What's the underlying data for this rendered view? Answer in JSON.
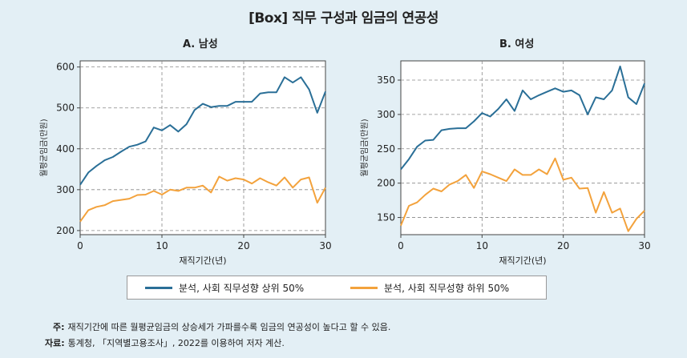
{
  "title": "[Box] 직무 구성과 임금의 연공성",
  "legend": {
    "upper": "분석, 사회 직무성향 상위 50%",
    "lower": "분석, 사회 직무성향 하위 50%"
  },
  "notes": {
    "note_label": "주:",
    "note_text": "재직기간에 따른 월평균임금의 상승세가 가파를수록 임금의 연공성이 높다고 할 수 있음.",
    "source_label": "자료:",
    "source_text": "통계청, 「지역별고용조사」, 2022를 이용하여 저자 계산."
  },
  "colors": {
    "upper": "#2a6f97",
    "lower": "#f3a23c",
    "grid": "#888888",
    "background": "#e3eff5",
    "plot_bg": "#ffffff"
  },
  "chart_data": [
    {
      "type": "line",
      "title": "A. 남성",
      "xlabel": "재직기간(년)",
      "ylabel": "월평균임금(만원)",
      "xlim": [
        0,
        30
      ],
      "ylim": [
        190,
        615
      ],
      "xticks": [
        0,
        10,
        20,
        30
      ],
      "yticks": [
        200,
        300,
        400,
        500,
        600
      ],
      "grid": true,
      "x": [
        0,
        1,
        2,
        3,
        4,
        5,
        6,
        7,
        8,
        9,
        10,
        11,
        12,
        13,
        14,
        15,
        16,
        17,
        18,
        19,
        20,
        21,
        22,
        23,
        24,
        25,
        26,
        27,
        28,
        29,
        30
      ],
      "series": [
        {
          "name": "분석, 사회 직무성향 상위 50%",
          "values": [
            312,
            342,
            358,
            372,
            380,
            393,
            405,
            410,
            418,
            452,
            445,
            458,
            442,
            460,
            495,
            510,
            502,
            505,
            505,
            515,
            515,
            515,
            535,
            538,
            538,
            575,
            562,
            575,
            545,
            488,
            540
          ]
        },
        {
          "name": "분석, 사회 직무성향 하위 50%",
          "values": [
            222,
            250,
            258,
            262,
            272,
            275,
            278,
            287,
            288,
            297,
            288,
            300,
            297,
            305,
            305,
            310,
            293,
            332,
            322,
            328,
            325,
            315,
            328,
            318,
            310,
            330,
            305,
            325,
            330,
            268,
            305
          ]
        }
      ]
    },
    {
      "type": "line",
      "title": "B. 여성",
      "xlabel": "재직기간(년)",
      "ylabel": "월평균임금(만원)",
      "xlim": [
        0,
        30
      ],
      "ylim": [
        125,
        378
      ],
      "xticks": [
        0,
        10,
        20,
        30
      ],
      "yticks": [
        150,
        200,
        250,
        300,
        350
      ],
      "grid": true,
      "x": [
        0,
        1,
        2,
        3,
        4,
        5,
        6,
        7,
        8,
        9,
        10,
        11,
        12,
        13,
        14,
        15,
        16,
        17,
        18,
        19,
        20,
        21,
        22,
        23,
        24,
        25,
        26,
        27,
        28,
        29,
        30
      ],
      "series": [
        {
          "name": "분석, 사회 직무성향 상위 50%",
          "values": [
            220,
            235,
            253,
            262,
            263,
            277,
            279,
            280,
            280,
            290,
            302,
            297,
            308,
            322,
            305,
            335,
            322,
            328,
            333,
            338,
            333,
            335,
            328,
            300,
            325,
            322,
            335,
            370,
            325,
            315,
            345
          ]
        },
        {
          "name": "분석, 사회 직무성향 하위 50%",
          "values": [
            138,
            167,
            172,
            183,
            192,
            188,
            198,
            203,
            212,
            193,
            217,
            213,
            208,
            203,
            220,
            212,
            212,
            220,
            213,
            236,
            205,
            208,
            192,
            193,
            157,
            187,
            157,
            163,
            130,
            148,
            160
          ]
        }
      ]
    }
  ]
}
